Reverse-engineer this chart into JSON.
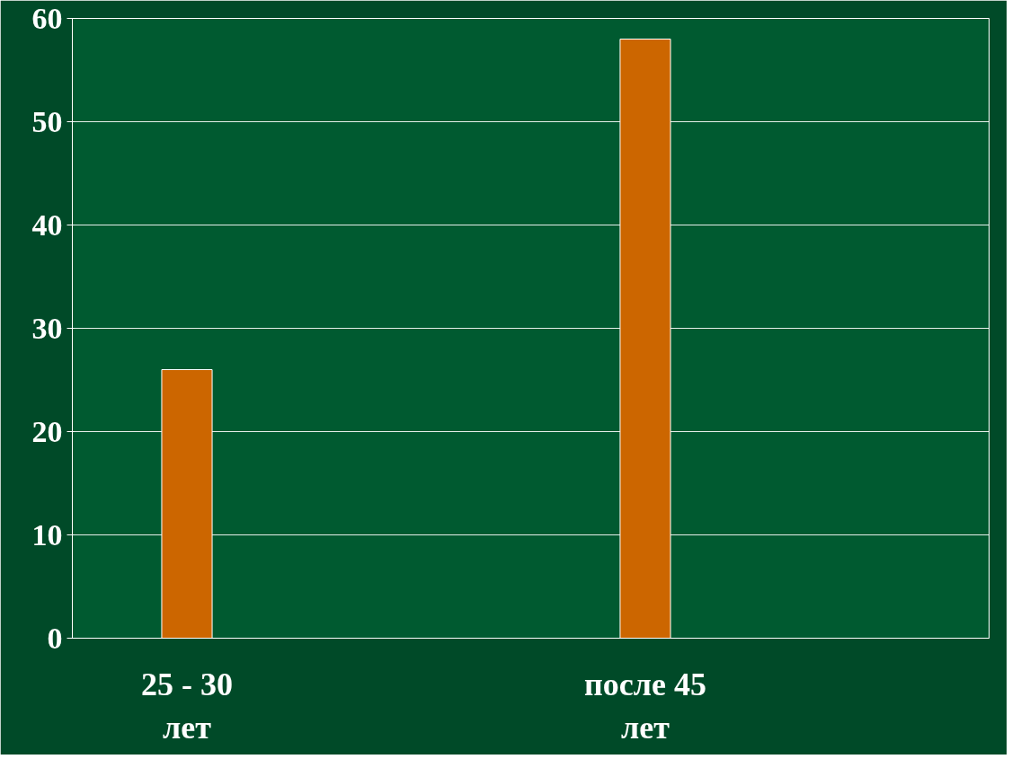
{
  "chart_data": {
    "type": "bar",
    "categories": [
      "25 - 30 лет",
      null,
      "после 45 лет",
      null
    ],
    "values": [
      26,
      null,
      58,
      null
    ],
    "color": "#cc6600",
    "ylim": [
      0,
      60
    ],
    "yticks": [
      0,
      10,
      20,
      30,
      40,
      50,
      60
    ],
    "grid": "y"
  }
}
